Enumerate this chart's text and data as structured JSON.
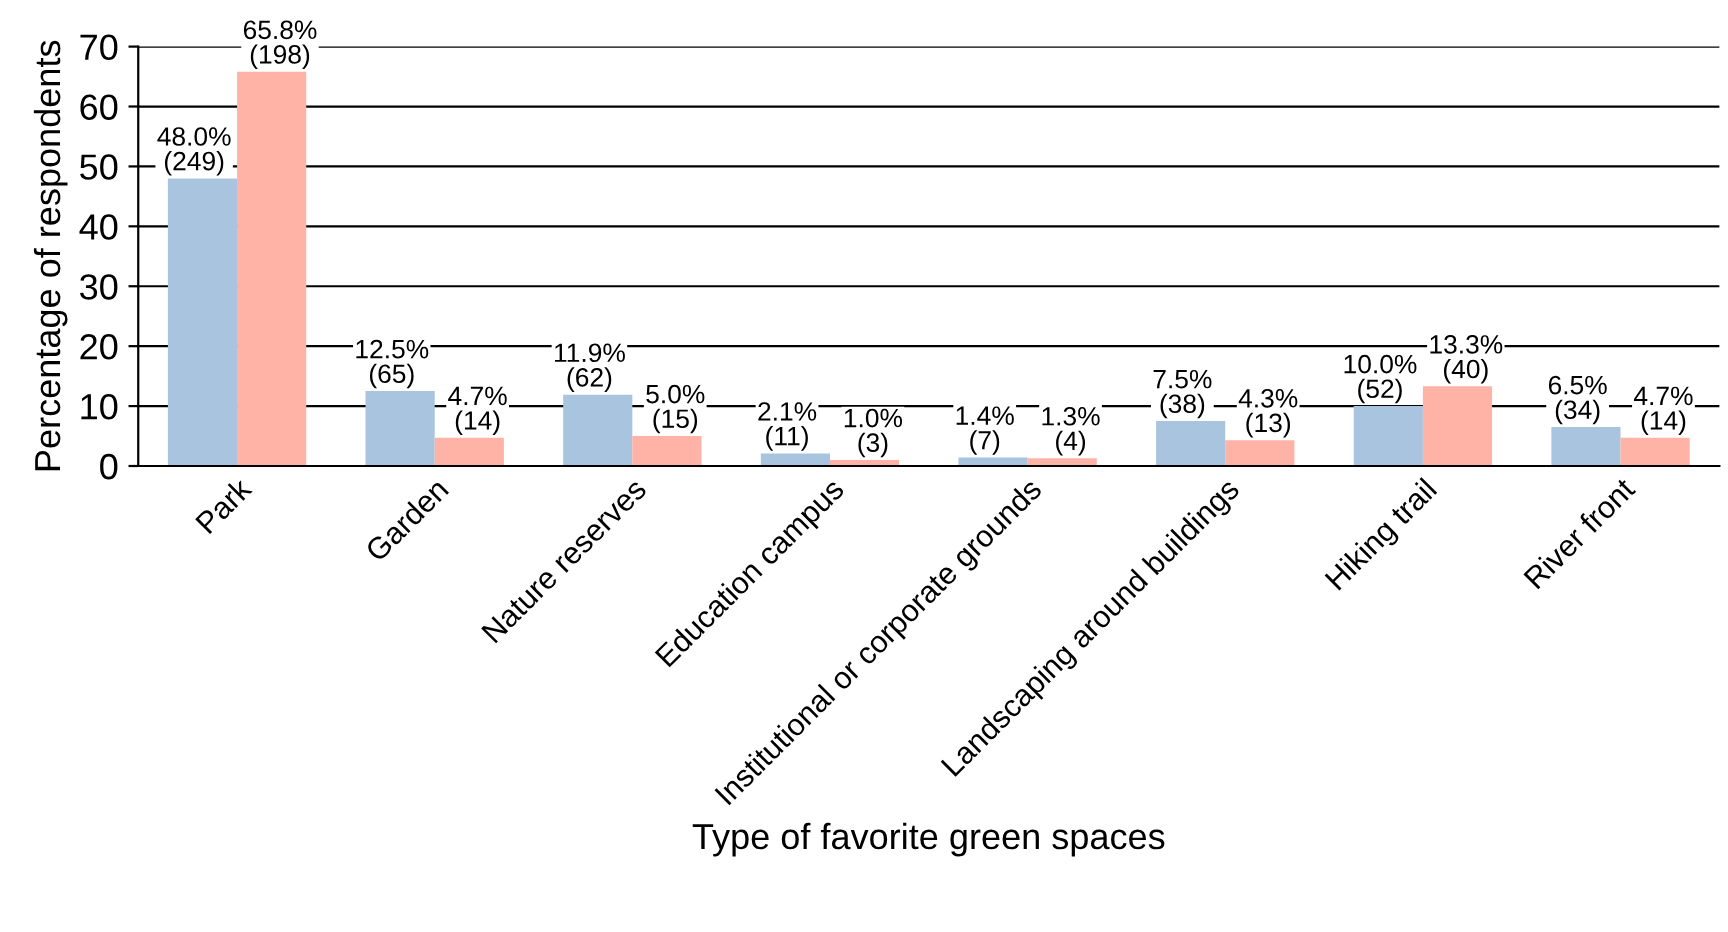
{
  "chart_data": {
    "type": "bar",
    "xlabel": "Type of favorite green spaces",
    "ylabel": "Percentage of respondents",
    "categories": [
      "Park",
      "Garden",
      "Nature reserves",
      "Education campus",
      "Institutional or corporate grounds",
      "Landscaping around buildings",
      "Hiking trail",
      "River front"
    ],
    "series": [
      {
        "color": "#a9c4de",
        "values": [
          48.0,
          12.5,
          11.9,
          2.1,
          1.4,
          7.5,
          10.0,
          6.5
        ],
        "value_labels": [
          "48.0%\n(249)",
          "12.5%\n(65)",
          "11.9%\n(62)",
          "2.1%\n(11)",
          "1.4%\n(7)",
          "7.5%\n(38)",
          "10.0%\n(52)",
          "6.5%\n(34)"
        ]
      },
      {
        "color": "#ffb3a7",
        "values": [
          65.8,
          4.7,
          5.0,
          1.0,
          1.3,
          4.3,
          13.3,
          4.7
        ],
        "value_labels": [
          "65.8%\n(198)",
          "4.7%\n(14)",
          "5.0%\n(15)",
          "1.0%\n(3)",
          "1.3%\n(4)",
          "4.3%\n(13)",
          "13.3%\n(40)",
          "4.7%\n(14)"
        ]
      }
    ],
    "ylim": [
      0,
      70
    ],
    "yticks": [
      0,
      10,
      20,
      30,
      40,
      50,
      60,
      70
    ],
    "grid": "y",
    "legend": false
  }
}
